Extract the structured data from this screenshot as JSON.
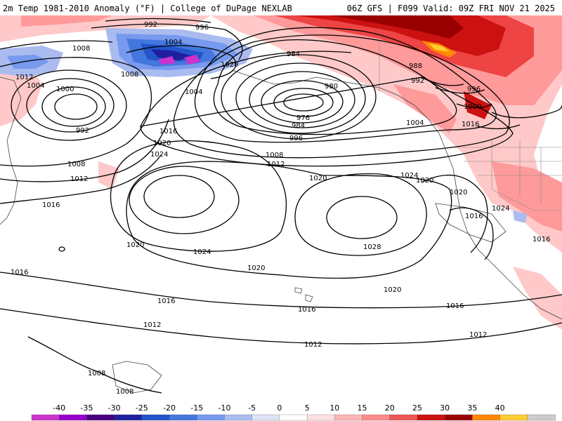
{
  "header": {
    "title_left": "2m Temp 1981-2010 Anomaly (°F) | College of DuPage NEXLAB",
    "title_right": "06Z GFS | F099 Valid: 09Z FRI NOV 21 2025"
  },
  "colors": {
    "ocean_background": "#ffffff",
    "isobar": "#000000",
    "coastline": "#444444",
    "border": "#888888"
  },
  "isobar_labels": [
    "992",
    "996",
    "1004",
    "1008",
    "1012",
    "1004",
    "1008",
    "1020",
    "984",
    "980",
    "988",
    "992",
    "996",
    "1000",
    "976",
    "984",
    "992",
    "996",
    "1004",
    "1016",
    "1008",
    "1012",
    "1016",
    "1020",
    "1024",
    "1008",
    "1012",
    "1016",
    "1020",
    "1024",
    "1020",
    "1016",
    "1016",
    "1020",
    "1024",
    "1028",
    "1020",
    "1024",
    "1020",
    "1020",
    "1016",
    "1016",
    "1016",
    "1016",
    "1012",
    "1012",
    "1012",
    "1008",
    "1008",
    "1000",
    "1004"
  ],
  "legend": {
    "ticks": [
      "-40",
      "-35",
      "-30",
      "-25",
      "-20",
      "-15",
      "-10",
      "-5",
      "0",
      "5",
      "10",
      "15",
      "20",
      "25",
      "30",
      "35",
      "40"
    ],
    "colors": [
      "#cc33cc",
      "#9900cc",
      "#4b0082",
      "#1f1fa0",
      "#2255cc",
      "#4477dd",
      "#7799ee",
      "#aabbf0",
      "#dde4f8",
      "#ffffff",
      "#ffe0e0",
      "#ffb5b5",
      "#ff8a8a",
      "#ee5555",
      "#cc1111",
      "#990000",
      "#ff8800",
      "#ffcc33",
      "#cccccc"
    ]
  }
}
